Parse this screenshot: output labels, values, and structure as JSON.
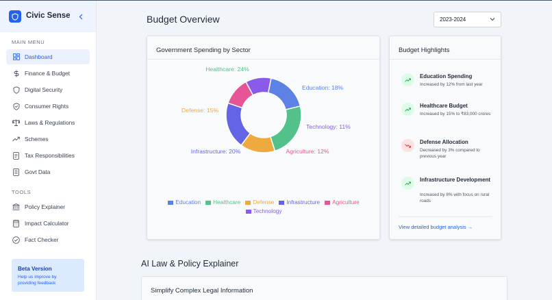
{
  "app": {
    "title": "Civic Sense"
  },
  "sidebar": {
    "main_menu_label": "MAIN MENU",
    "items": [
      {
        "label": "Dashboard",
        "icon": "dashboard-icon",
        "active": true
      },
      {
        "label": "Finance & Budget",
        "icon": "dollar-icon"
      },
      {
        "label": "Digital Security",
        "icon": "shield-icon"
      },
      {
        "label": "Consumer Rights",
        "icon": "shield-check-icon"
      },
      {
        "label": "Laws & Regulations",
        "icon": "scales-icon"
      },
      {
        "label": "Schemes",
        "icon": "trending-up-icon"
      },
      {
        "label": "Tax Responsibilities",
        "icon": "receipt-icon"
      },
      {
        "label": "Govt Data",
        "icon": "database-icon"
      }
    ],
    "tools_label": "TOOLS",
    "tools": [
      {
        "label": "Policy Explainer",
        "icon": "bank-icon"
      },
      {
        "label": "Impact Calculator",
        "icon": "calculator-icon"
      },
      {
        "label": "Fact Checker",
        "icon": "check-circle-icon"
      }
    ],
    "beta": {
      "title": "Beta Version",
      "text_line1": "Help us improve by",
      "text_line2": "providing feedback"
    }
  },
  "header": {
    "title": "Budget Overview",
    "year": "2023-2024"
  },
  "spending_card": {
    "title": "Government Spending by Sector"
  },
  "chart_data": {
    "type": "pie",
    "title": "Government Spending by Sector",
    "donut": true,
    "legend_position": "bottom",
    "categories": [
      "Education",
      "Healthcare",
      "Defense",
      "Infrastructure",
      "Agriculture",
      "Technology"
    ],
    "values": [
      18,
      24,
      15,
      20,
      12,
      11
    ],
    "colors": [
      "#5b82e4",
      "#52c18a",
      "#eea93f",
      "#6465e6",
      "#e65696",
      "#8a5be8"
    ],
    "labels": [
      "Education: 18%",
      "Healthcare: 24%",
      "Defense: 15%",
      "Infrastructure: 20%",
      "Agriculture: 12%",
      "Technology: 11%"
    ]
  },
  "highlights": {
    "title": "Budget Highlights",
    "items": [
      {
        "title": "Education Spending",
        "desc": "Increased by 12% from last year",
        "trend": "up"
      },
      {
        "title": "Healthcare Budget",
        "desc": "Increased by 15% to ₹83,000 crores",
        "trend": "up"
      },
      {
        "title": "Defense Allocation",
        "desc": "Decreased by 3% compared to previous year",
        "trend": "down"
      },
      {
        "title": "Infrastructure Development",
        "desc": "Increased by 8% with focus on rural roads",
        "trend": "up"
      }
    ],
    "link": "View detailed budget analysis →"
  },
  "explainer": {
    "section_title": "AI Law & Policy Explainer",
    "card_title": "Simplify Complex Legal Information"
  },
  "colors": {
    "accent": "#2563eb",
    "up": "#16a34a",
    "down": "#dc2626"
  }
}
